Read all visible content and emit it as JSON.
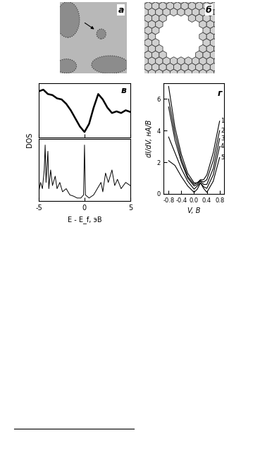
{
  "chart_data": [
    {
      "type": "image",
      "panel_label": "а"
    },
    {
      "type": "diagram",
      "panel_label": "б"
    },
    {
      "type": "line",
      "panel_label": "в",
      "ylabel": "DOS",
      "color": "#000000",
      "x": [
        -5,
        -4.5,
        -4,
        -3.5,
        -3,
        -2.5,
        -2,
        -1.5,
        -1,
        -0.5,
        0,
        0.5,
        1,
        1.5,
        2,
        2.5,
        3,
        3.5,
        4,
        4.5,
        5
      ],
      "values": [
        0.85,
        0.88,
        0.8,
        0.78,
        0.72,
        0.7,
        0.62,
        0.5,
        0.35,
        0.2,
        0.1,
        0.25,
        0.55,
        0.8,
        0.7,
        0.55,
        0.45,
        0.48,
        0.45,
        0.5,
        0.47
      ],
      "xlim": [
        -5,
        5
      ],
      "xticks": [
        -5,
        0,
        5
      ],
      "ylim": [
        0,
        1
      ],
      "yticks": [],
      "tick_labels": false
    },
    {
      "type": "line",
      "xlabel": "E - E_f, эВ",
      "color": "#000000",
      "x": [
        -5,
        -4.8,
        -4.6,
        -4.4,
        -4.3,
        -4.2,
        -4.0,
        -3.9,
        -3.7,
        -3.5,
        -3.2,
        -3.0,
        -2.7,
        -2.4,
        -2.0,
        -1.6,
        -1.2,
        -0.8,
        -0.4,
        -0.1,
        0,
        0.1,
        0.5,
        1.0,
        1.4,
        1.8,
        2.0,
        2.3,
        2.6,
        3.0,
        3.3,
        3.6,
        4.0,
        4.5,
        5.0
      ],
      "values": [
        0.15,
        0.3,
        0.2,
        0.5,
        0.9,
        0.3,
        0.8,
        0.2,
        0.5,
        0.25,
        0.4,
        0.2,
        0.3,
        0.15,
        0.2,
        0.1,
        0.08,
        0.05,
        0.05,
        0.1,
        0.9,
        0.1,
        0.05,
        0.1,
        0.2,
        0.3,
        0.15,
        0.45,
        0.3,
        0.5,
        0.25,
        0.35,
        0.2,
        0.3,
        0.25
      ],
      "xlim": [
        -5,
        5
      ],
      "xticks": [
        -5,
        0,
        5
      ],
      "ylim": [
        0,
        1
      ],
      "yticks": [],
      "tick_labels": "x"
    },
    {
      "type": "line",
      "panel_label": "г",
      "xlabel": "V, В",
      "ylabel": "dI/dV, нА/В",
      "x": [
        -0.8,
        -0.6,
        -0.4,
        -0.2,
        0,
        0.1,
        0.2,
        0.3,
        0.4,
        0.6,
        0.8
      ],
      "series": [
        {
          "name": "1",
          "color": "#000000",
          "values": [
            6.8,
            4.2,
            2.5,
            1.3,
            0.7,
            0.7,
            0.9,
            0.9,
            1.2,
            2.6,
            4.6
          ]
        },
        {
          "name": "2",
          "color": "#000000",
          "values": [
            6.0,
            3.8,
            2.2,
            1.1,
            0.6,
            0.7,
            0.85,
            0.75,
            0.9,
            2.1,
            4.0
          ]
        },
        {
          "name": "3",
          "color": "#000000",
          "values": [
            5.5,
            3.4,
            2.0,
            1.0,
            0.5,
            0.6,
            0.8,
            0.6,
            0.6,
            1.6,
            3.5
          ]
        },
        {
          "name": "4",
          "color": "#000000",
          "values": [
            3.6,
            2.6,
            1.6,
            0.8,
            0.3,
            0.5,
            0.7,
            0.45,
            0.35,
            1.2,
            3.0
          ]
        },
        {
          "name": "5",
          "color": "#000000",
          "values": [
            2.1,
            1.8,
            1.1,
            0.5,
            0.1,
            0.3,
            0.7,
            0.35,
            0.1,
            0.8,
            2.3
          ]
        }
      ],
      "xlim": [
        -0.95,
        0.95
      ],
      "xticks": [
        -0.8,
        -0.4,
        0.0,
        0.4,
        0.8
      ],
      "ylim": [
        0,
        7
      ],
      "yticks": [
        0,
        2,
        4,
        6
      ]
    }
  ]
}
